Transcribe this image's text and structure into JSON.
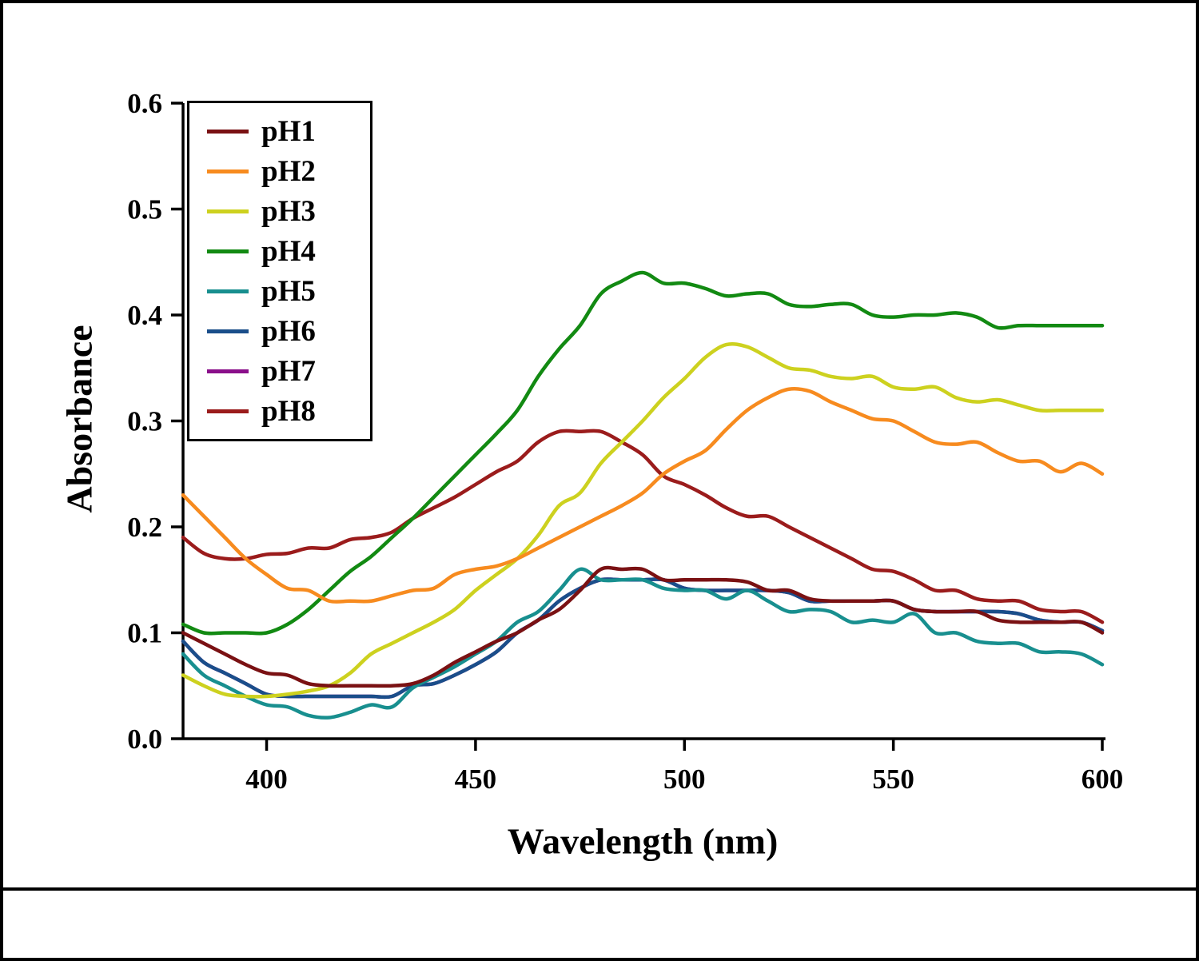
{
  "chart_data": {
    "type": "line",
    "title": "",
    "xlabel": "Wavelength (nm)",
    "ylabel": "Absorbance",
    "xlim": [
      380,
      600
    ],
    "ylim": [
      0,
      0.6
    ],
    "x_ticks": [
      400,
      450,
      500,
      550,
      600
    ],
    "x_tick_labels": [
      "400",
      "450",
      "500",
      "550",
      "600"
    ],
    "y_ticks": [
      0.0,
      0.1,
      0.2,
      0.3,
      0.4,
      0.5,
      0.6
    ],
    "y_tick_labels": [
      "0.0",
      "0.1",
      "0.2",
      "0.3",
      "0.4",
      "0.5",
      "0.6"
    ],
    "grid": false,
    "legend_position": "upper-left",
    "wavelengths": [
      380,
      385,
      390,
      395,
      400,
      405,
      410,
      415,
      420,
      425,
      430,
      435,
      440,
      445,
      450,
      455,
      460,
      465,
      470,
      475,
      480,
      485,
      490,
      495,
      500,
      505,
      510,
      515,
      520,
      525,
      530,
      535,
      540,
      545,
      550,
      555,
      560,
      565,
      570,
      575,
      580,
      585,
      590,
      595,
      600
    ],
    "series": [
      {
        "name": "pH1",
        "color": "#7a1113",
        "values": [
          0.1,
          0.09,
          0.08,
          0.07,
          0.062,
          0.06,
          0.052,
          0.05,
          0.05,
          0.05,
          0.05,
          0.052,
          0.06,
          0.072,
          0.082,
          0.092,
          0.1,
          0.112,
          0.122,
          0.14,
          0.16,
          0.16,
          0.16,
          0.15,
          0.15,
          0.15,
          0.15,
          0.148,
          0.14,
          0.14,
          0.132,
          0.13,
          0.13,
          0.13,
          0.13,
          0.122,
          0.12,
          0.12,
          0.12,
          0.112,
          0.11,
          0.11,
          0.11,
          0.11,
          0.1
        ]
      },
      {
        "name": "pH2",
        "color": "#f78b1f",
        "values": [
          0.23,
          0.21,
          0.19,
          0.17,
          0.155,
          0.142,
          0.14,
          0.13,
          0.13,
          0.13,
          0.135,
          0.14,
          0.142,
          0.155,
          0.16,
          0.163,
          0.17,
          0.18,
          0.19,
          0.2,
          0.21,
          0.22,
          0.232,
          0.25,
          0.262,
          0.272,
          0.292,
          0.31,
          0.322,
          0.33,
          0.328,
          0.318,
          0.31,
          0.302,
          0.3,
          0.29,
          0.28,
          0.278,
          0.28,
          0.27,
          0.262,
          0.262,
          0.252,
          0.26,
          0.25
        ]
      },
      {
        "name": "pH3",
        "color": "#cdd11f",
        "values": [
          0.06,
          0.05,
          0.042,
          0.04,
          0.04,
          0.042,
          0.045,
          0.05,
          0.062,
          0.08,
          0.09,
          0.1,
          0.11,
          0.122,
          0.14,
          0.155,
          0.17,
          0.192,
          0.22,
          0.232,
          0.26,
          0.28,
          0.3,
          0.322,
          0.34,
          0.36,
          0.372,
          0.37,
          0.36,
          0.35,
          0.348,
          0.342,
          0.34,
          0.342,
          0.332,
          0.33,
          0.332,
          0.322,
          0.318,
          0.32,
          0.315,
          0.31,
          0.31,
          0.31,
          0.31
        ]
      },
      {
        "name": "pH4",
        "color": "#128a12",
        "values": [
          0.108,
          0.1,
          0.1,
          0.1,
          0.1,
          0.108,
          0.122,
          0.14,
          0.158,
          0.172,
          0.19,
          0.208,
          0.228,
          0.248,
          0.268,
          0.288,
          0.31,
          0.342,
          0.368,
          0.39,
          0.42,
          0.432,
          0.44,
          0.43,
          0.43,
          0.425,
          0.418,
          0.42,
          0.42,
          0.41,
          0.408,
          0.41,
          0.41,
          0.4,
          0.398,
          0.4,
          0.4,
          0.402,
          0.398,
          0.388,
          0.39,
          0.39,
          0.39,
          0.39,
          0.39
        ]
      },
      {
        "name": "pH5",
        "color": "#188f8f",
        "values": [
          0.08,
          0.06,
          0.05,
          0.04,
          0.032,
          0.03,
          0.022,
          0.02,
          0.025,
          0.032,
          0.03,
          0.048,
          0.058,
          0.068,
          0.08,
          0.092,
          0.11,
          0.12,
          0.14,
          0.16,
          0.15,
          0.15,
          0.15,
          0.142,
          0.14,
          0.14,
          0.132,
          0.14,
          0.13,
          0.12,
          0.122,
          0.12,
          0.11,
          0.112,
          0.11,
          0.118,
          0.1,
          0.1,
          0.092,
          0.09,
          0.09,
          0.082,
          0.082,
          0.08,
          0.07
        ]
      },
      {
        "name": "pH6",
        "color": "#1a4e8a",
        "values": [
          0.092,
          0.072,
          0.062,
          0.052,
          0.042,
          0.04,
          0.04,
          0.04,
          0.04,
          0.04,
          0.04,
          0.05,
          0.052,
          0.06,
          0.07,
          0.082,
          0.1,
          0.112,
          0.13,
          0.142,
          0.15,
          0.15,
          0.15,
          0.15,
          0.142,
          0.14,
          0.14,
          0.14,
          0.14,
          0.138,
          0.13,
          0.13,
          0.13,
          0.13,
          0.13,
          0.122,
          0.12,
          0.12,
          0.12,
          0.12,
          0.118,
          0.112,
          0.11,
          0.11,
          0.102
        ]
      },
      {
        "name": "pH7",
        "color": "#8a0f8a",
        "values": [
          0.092,
          0.072,
          0.062,
          0.052,
          0.042,
          0.04,
          0.04,
          0.04,
          0.04,
          0.04,
          0.04,
          0.05,
          0.052,
          0.06,
          0.07,
          0.082,
          0.1,
          0.112,
          0.13,
          0.142,
          0.15,
          0.15,
          0.15,
          0.15,
          0.142,
          0.14,
          0.14,
          0.14,
          0.14,
          0.138,
          0.13,
          0.13,
          0.13,
          0.13,
          0.13,
          0.122,
          0.12,
          0.12,
          0.12,
          0.12,
          0.118,
          0.112,
          0.11,
          0.11,
          0.102
        ]
      },
      {
        "name": "pH8",
        "color": "#9b1c1c",
        "values": [
          0.19,
          0.175,
          0.17,
          0.17,
          0.174,
          0.175,
          0.18,
          0.18,
          0.188,
          0.19,
          0.195,
          0.208,
          0.218,
          0.228,
          0.24,
          0.252,
          0.262,
          0.28,
          0.29,
          0.29,
          0.29,
          0.28,
          0.268,
          0.248,
          0.24,
          0.23,
          0.218,
          0.21,
          0.21,
          0.2,
          0.19,
          0.18,
          0.17,
          0.16,
          0.158,
          0.15,
          0.14,
          0.14,
          0.132,
          0.13,
          0.13,
          0.122,
          0.12,
          0.12,
          0.11
        ]
      }
    ]
  }
}
